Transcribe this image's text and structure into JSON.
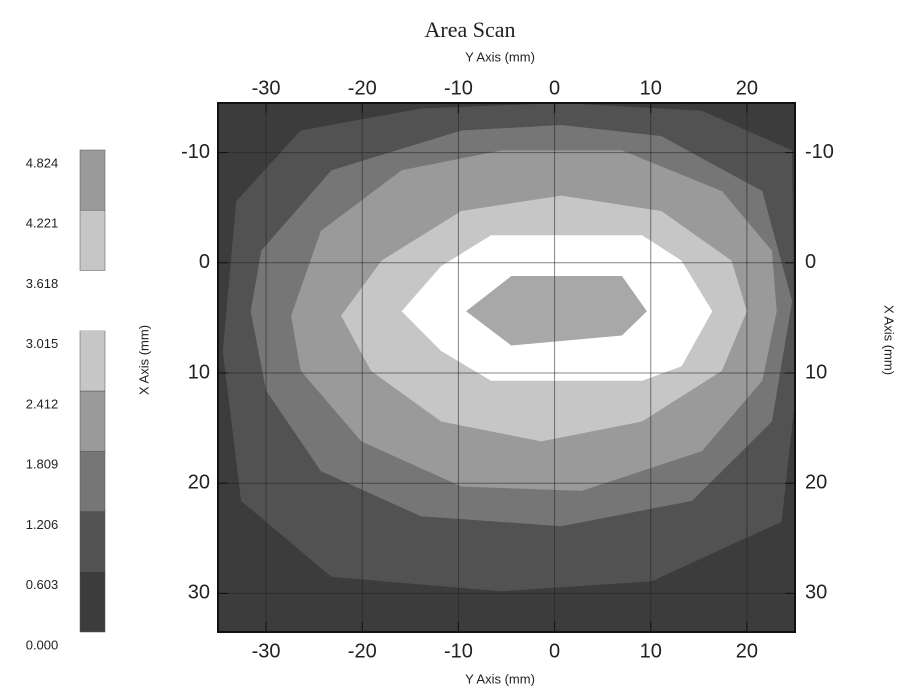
{
  "chart_data": {
    "type": "contour",
    "title": "Area Scan",
    "x_label": "Y Axis (mm)",
    "x2_label": "Y Axis (mm)",
    "y_label": "X Axis (mm)",
    "y2_label": "X Axis (mm)",
    "xlim": [
      -35,
      25
    ],
    "xticks": [
      -30,
      -20,
      -10,
      0,
      10,
      20
    ],
    "ylim": [
      -14.5,
      33.5
    ],
    "y_inverted": true,
    "yticks": [
      -10,
      0,
      10,
      20,
      30
    ],
    "grid": true,
    "background": "#3c3c3c",
    "series": [
      {
        "color": "#525252",
        "x": [
          -26.4,
          -13.9,
          0.7,
          15.3,
          24.7,
          25,
          23.6,
          10.1,
          -5.5,
          -23.2,
          -32.6,
          -34.5,
          -33.1
        ],
        "y": [
          -12,
          -14,
          -14.5,
          -13.8,
          -10.2,
          12.5,
          23.5,
          28.9,
          29.8,
          28.5,
          21.6,
          8,
          -5.6
        ]
      },
      {
        "color": "#767676",
        "x": [
          -30.5,
          -23.2,
          -9.7,
          0.7,
          11.1,
          21.6,
          24.7,
          22.6,
          14.3,
          0.7,
          -13.9,
          -24.3,
          -30,
          -31.6
        ],
        "y": [
          -1.1,
          -8.4,
          -12,
          -12.5,
          -11.5,
          -6.5,
          3.5,
          14.4,
          21.6,
          23.9,
          23,
          18.9,
          11.6,
          4.4
        ]
      },
      {
        "color": "#9a9a9a",
        "x": [
          -27.4,
          -24.3,
          -15.9,
          -5.5,
          7,
          17.4,
          22.6,
          23.1,
          21.6,
          15.3,
          2.8,
          -9.7,
          -20.1,
          -26.4
        ],
        "y": [
          4.8,
          -2.9,
          -8.4,
          -10.2,
          -10.2,
          -6.5,
          -1.1,
          4.4,
          10.7,
          17.1,
          20.7,
          20.3,
          16.2,
          9.8
        ]
      },
      {
        "color": "#c6c6c6",
        "x": [
          -22.2,
          -18,
          -9.7,
          0.7,
          11.1,
          18.4,
          20,
          17.4,
          9.1,
          -1.4,
          -11.8,
          -19.1
        ],
        "y": [
          4.8,
          -0.2,
          -4.7,
          -6.1,
          -4.7,
          -0.2,
          4.4,
          9.8,
          14.4,
          16.2,
          14.4,
          9.8
        ]
      },
      {
        "color": "#ffffff",
        "x": [
          -15.9,
          -11.8,
          -6.6,
          9.1,
          13.2,
          16.4,
          13.2,
          9.1,
          -6.6,
          -11.8
        ],
        "y": [
          4.4,
          0.3,
          -2.5,
          -2.5,
          -0.2,
          4.4,
          9.4,
          10.7,
          10.7,
          8
        ]
      },
      {
        "color": "#a8a8a8",
        "x": [
          -9.2,
          -4.5,
          7,
          9.6,
          7,
          -4.5
        ],
        "y": [
          4.4,
          1.2,
          1.2,
          4.4,
          6.6,
          7.5
        ]
      }
    ],
    "colorbar": {
      "ticks": [
        {
          "value": 0,
          "label": "0.000"
        },
        0.603,
        1.206,
        1.809,
        2.412,
        3.015,
        3.618,
        4.221,
        4.824
      ],
      "colors": [
        "#3c3c3c",
        "#525252",
        "#767676",
        "#9a9a9a",
        "#c6c6c6",
        "#ffffff",
        "#c6c6c6",
        "#9a9a9a"
      ]
    }
  }
}
